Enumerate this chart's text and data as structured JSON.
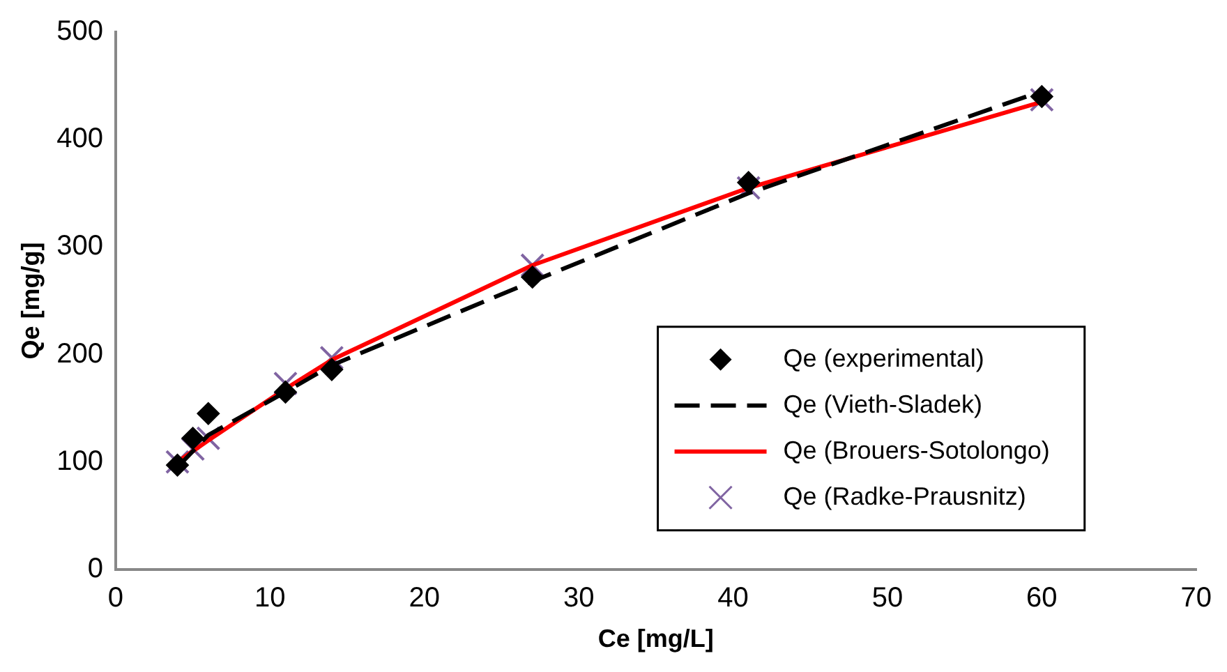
{
  "chart_data": {
    "type": "scatter",
    "xlabel": "Ce [mg/L]",
    "ylabel": "Qe [mg/g]",
    "xlim": [
      0,
      70
    ],
    "xticks": [
      0,
      10,
      20,
      30,
      40,
      50,
      60,
      70
    ],
    "ylim": [
      0,
      500
    ],
    "yticks": [
      0,
      100,
      200,
      300,
      400,
      500
    ],
    "grid": false,
    "legend": "bottom right",
    "series": [
      {
        "name": "Qe (experimental)",
        "type": "scatter",
        "marker": "diamond",
        "color": "#000000",
        "x": [
          4,
          5,
          6,
          11,
          14,
          27,
          41,
          60
        ],
        "values": [
          97,
          122,
          145,
          165,
          186,
          272,
          360,
          440
        ]
      },
      {
        "name": "Qe (Vieth-Sladek)",
        "type": "line",
        "line_style": "dashed",
        "color": "#000000",
        "x": [
          4,
          5,
          6,
          11,
          14,
          27,
          41,
          60
        ],
        "values": [
          95,
          110,
          125,
          165,
          190,
          268,
          350,
          445
        ]
      },
      {
        "name": "Qe (Brouers-Sotolongo)",
        "type": "line",
        "line_style": "solid",
        "color": "#ff0000",
        "x": [
          4,
          5,
          6,
          11,
          14,
          27,
          41,
          60
        ],
        "values": [
          100,
          110,
          120,
          168,
          195,
          283,
          355,
          435
        ]
      },
      {
        "name": "Qe (Radke-Prausnitz)",
        "type": "scatter",
        "marker": "cross",
        "color": "#8064a2",
        "x": [
          4,
          5,
          6,
          11,
          14,
          27,
          41,
          60
        ],
        "values": [
          100,
          112,
          122,
          173,
          197,
          283,
          355,
          437
        ]
      }
    ]
  }
}
